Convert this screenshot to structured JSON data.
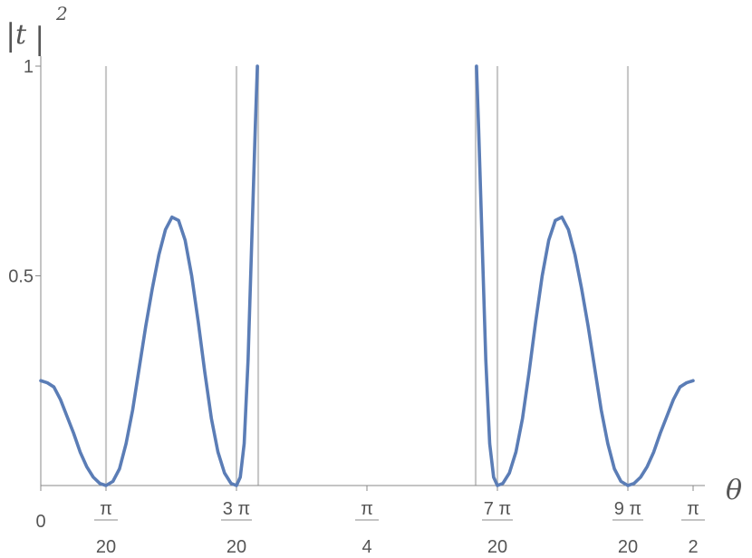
{
  "chart_data": {
    "type": "line",
    "title": "",
    "xlabel": "θ",
    "ylabel": {
      "abs_open": "|",
      "var": "t",
      "abs_close": "|",
      "exponent": "2"
    },
    "xlim": [
      0,
      1.5708
    ],
    "ylim": [
      0,
      1
    ],
    "grid": false,
    "x_ticks": [
      {
        "value": 0,
        "numerator": "0",
        "denominator": ""
      },
      {
        "value": 0.15708,
        "numerator": "π",
        "denominator": "20"
      },
      {
        "value": 0.47124,
        "numerator": "3 π",
        "denominator": "20"
      },
      {
        "value": 0.7854,
        "numerator": "π",
        "denominator": "4"
      },
      {
        "value": 1.09956,
        "numerator": "7 π",
        "denominator": "20"
      },
      {
        "value": 1.41372,
        "numerator": "9 π",
        "denominator": "20"
      },
      {
        "value": 1.5708,
        "numerator": "π",
        "denominator": "2"
      }
    ],
    "y_ticks": [
      {
        "value": 0.5,
        "label": "0.5"
      },
      {
        "value": 1,
        "label": "1"
      }
    ],
    "reference_lines_x": [
      0.15708,
      0.47124,
      0.5236,
      1.0472,
      1.09956,
      1.41372
    ],
    "series": [
      {
        "color": "#5b7db6",
        "points": [
          [
            0.0,
            0.25
          ],
          [
            0.0158,
            0.245
          ],
          [
            0.0316,
            0.235
          ],
          [
            0.0474,
            0.205
          ],
          [
            0.0632,
            0.165
          ],
          [
            0.079,
            0.125
          ],
          [
            0.0948,
            0.08
          ],
          [
            0.1106,
            0.045
          ],
          [
            0.1264,
            0.02
          ],
          [
            0.1422,
            0.005
          ],
          [
            0.15708,
            0.0
          ],
          [
            0.1738,
            0.01
          ],
          [
            0.1896,
            0.04
          ],
          [
            0.2054,
            0.1
          ],
          [
            0.2212,
            0.18
          ],
          [
            0.237,
            0.28
          ],
          [
            0.2528,
            0.38
          ],
          [
            0.2686,
            0.47
          ],
          [
            0.2844,
            0.55
          ],
          [
            0.3002,
            0.61
          ],
          [
            0.316,
            0.64
          ],
          [
            0.3318,
            0.632
          ],
          [
            0.3476,
            0.585
          ],
          [
            0.3634,
            0.5
          ],
          [
            0.3792,
            0.39
          ],
          [
            0.395,
            0.27
          ],
          [
            0.4108,
            0.16
          ],
          [
            0.4266,
            0.08
          ],
          [
            0.4424,
            0.03
          ],
          [
            0.4582,
            0.005
          ],
          [
            0.47124,
            0.0
          ],
          [
            0.4804,
            0.02
          ],
          [
            0.4898,
            0.1
          ],
          [
            0.4992,
            0.3
          ],
          [
            0.5086,
            0.6
          ],
          [
            0.5164,
            0.85
          ],
          [
            0.5216,
            1.0
          ]
        ]
      },
      {
        "color": "#5b7db6",
        "points": [
          [
            1.0492,
            1.0
          ],
          [
            1.0544,
            0.85
          ],
          [
            1.0622,
            0.6
          ],
          [
            1.0716,
            0.3
          ],
          [
            1.081,
            0.1
          ],
          [
            1.0904,
            0.02
          ],
          [
            1.09956,
            0.0
          ],
          [
            1.1126,
            0.005
          ],
          [
            1.1284,
            0.03
          ],
          [
            1.1442,
            0.08
          ],
          [
            1.16,
            0.16
          ],
          [
            1.1758,
            0.27
          ],
          [
            1.1916,
            0.39
          ],
          [
            1.2074,
            0.5
          ],
          [
            1.2232,
            0.585
          ],
          [
            1.239,
            0.632
          ],
          [
            1.2548,
            0.64
          ],
          [
            1.2706,
            0.61
          ],
          [
            1.2864,
            0.55
          ],
          [
            1.3022,
            0.47
          ],
          [
            1.318,
            0.38
          ],
          [
            1.3338,
            0.28
          ],
          [
            1.3496,
            0.18
          ],
          [
            1.3654,
            0.1
          ],
          [
            1.3812,
            0.04
          ],
          [
            1.397,
            0.01
          ],
          [
            1.41372,
            0.0
          ],
          [
            1.4286,
            0.005
          ],
          [
            1.4444,
            0.02
          ],
          [
            1.4602,
            0.045
          ],
          [
            1.476,
            0.08
          ],
          [
            1.4918,
            0.125
          ],
          [
            1.5076,
            0.165
          ],
          [
            1.5234,
            0.205
          ],
          [
            1.5392,
            0.235
          ],
          [
            1.555,
            0.245
          ],
          [
            1.5708,
            0.25
          ]
        ]
      }
    ]
  }
}
